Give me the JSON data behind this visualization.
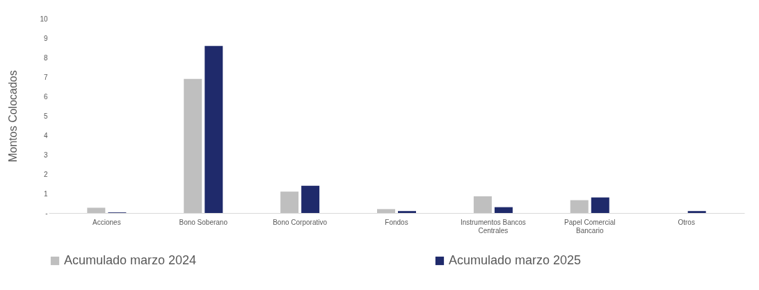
{
  "chart_data": {
    "type": "bar",
    "ylabel": "Montos Colocados",
    "categories": [
      "Acciones",
      "Bono Soberano",
      "Bono Corporativo",
      "Fondos",
      "Instrumentos Bancos Centrales",
      "Papel Comercial Bancario",
      "Otros"
    ],
    "series": [
      {
        "name": "Acumulado marzo 2024",
        "color": "#bfbfbf",
        "values": [
          0.27,
          6.9,
          1.1,
          0.2,
          0.86,
          0.66,
          0
        ]
      },
      {
        "name": "Acumulado marzo 2025",
        "color": "#1f2a6b",
        "values": [
          0.03,
          8.6,
          1.4,
          0.1,
          0.3,
          0.8,
          0.1
        ]
      }
    ],
    "ylim": [
      0,
      10
    ],
    "yticks": [
      {
        "value": 0,
        "label": "-"
      },
      1,
      2,
      3,
      4,
      5,
      6,
      7,
      8,
      9,
      10
    ],
    "legend": "bottom"
  }
}
